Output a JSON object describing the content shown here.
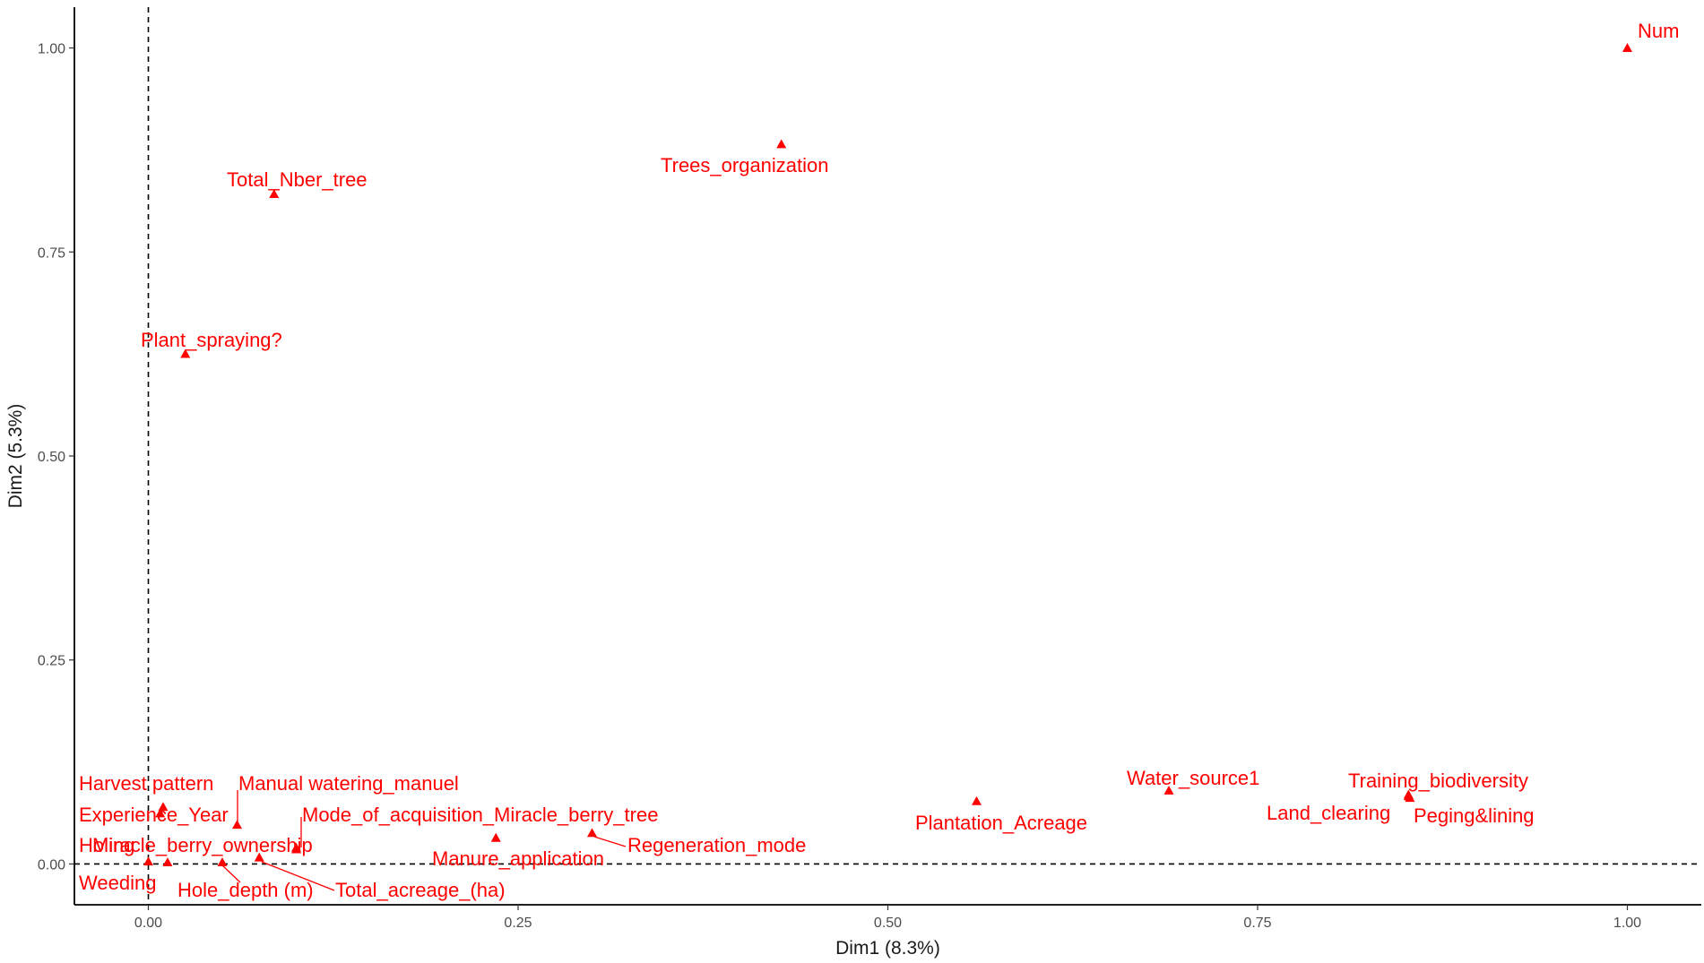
{
  "chart_data": {
    "type": "scatter",
    "xlabel": "Dim1 (8.3%)",
    "ylabel": "Dim2 (5.3%)",
    "xlim": [
      -0.05,
      1.05
    ],
    "ylim": [
      -0.05,
      1.05
    ],
    "x_ticks": [
      "0.00",
      "0.25",
      "0.50",
      "0.75",
      "1.00"
    ],
    "y_ticks": [
      "0.00",
      "0.25",
      "0.50",
      "0.75",
      "1.00"
    ],
    "grid": false,
    "reference_lines": {
      "x": 0,
      "y": 0,
      "style": "dashed"
    },
    "marker": "triangle",
    "color": "#ff0000",
    "points": [
      {
        "label": "Num",
        "x": 1.0,
        "y": 1.0
      },
      {
        "label": "Trees_organization",
        "x": 0.428,
        "y": 0.882
      },
      {
        "label": "Total_Nber_tree",
        "x": 0.085,
        "y": 0.821
      },
      {
        "label": "Plant_spraying?",
        "x": 0.025,
        "y": 0.625
      },
      {
        "label": "Water_source1",
        "x": 0.69,
        "y": 0.09
      },
      {
        "label": "Training_biodiversity",
        "x": 0.852,
        "y": 0.085
      },
      {
        "label": "Land_clearing",
        "x": 0.852,
        "y": 0.083
      },
      {
        "label": "Peging&lining",
        "x": 0.853,
        "y": 0.081
      },
      {
        "label": "Plantation_Acreage",
        "x": 0.56,
        "y": 0.077
      },
      {
        "label": "Harvest pattern",
        "x": 0.01,
        "y": 0.07
      },
      {
        "label": "Experience_Year",
        "x": 0.008,
        "y": 0.062
      },
      {
        "label": "Manual watering_manuel",
        "x": 0.06,
        "y": 0.048
      },
      {
        "label": "Mode_of_acquisition_Miracle_berry_tree",
        "x": 0.1,
        "y": 0.02
      },
      {
        "label": "Regeneration_mode",
        "x": 0.3,
        "y": 0.038
      },
      {
        "label": "Manure_application",
        "x": 0.235,
        "y": 0.032
      },
      {
        "label": "Miracle_berry_ownership",
        "x": 0.1,
        "y": 0.018
      },
      {
        "label": "Holing",
        "x": 0.0,
        "y": 0.003
      },
      {
        "label": "Weeding",
        "x": 0.013,
        "y": 0.002
      },
      {
        "label": "Hole_depth (m)",
        "x": 0.05,
        "y": 0.002
      },
      {
        "label": "Total_acreage_(ha)",
        "x": 0.075,
        "y": 0.008
      }
    ]
  }
}
